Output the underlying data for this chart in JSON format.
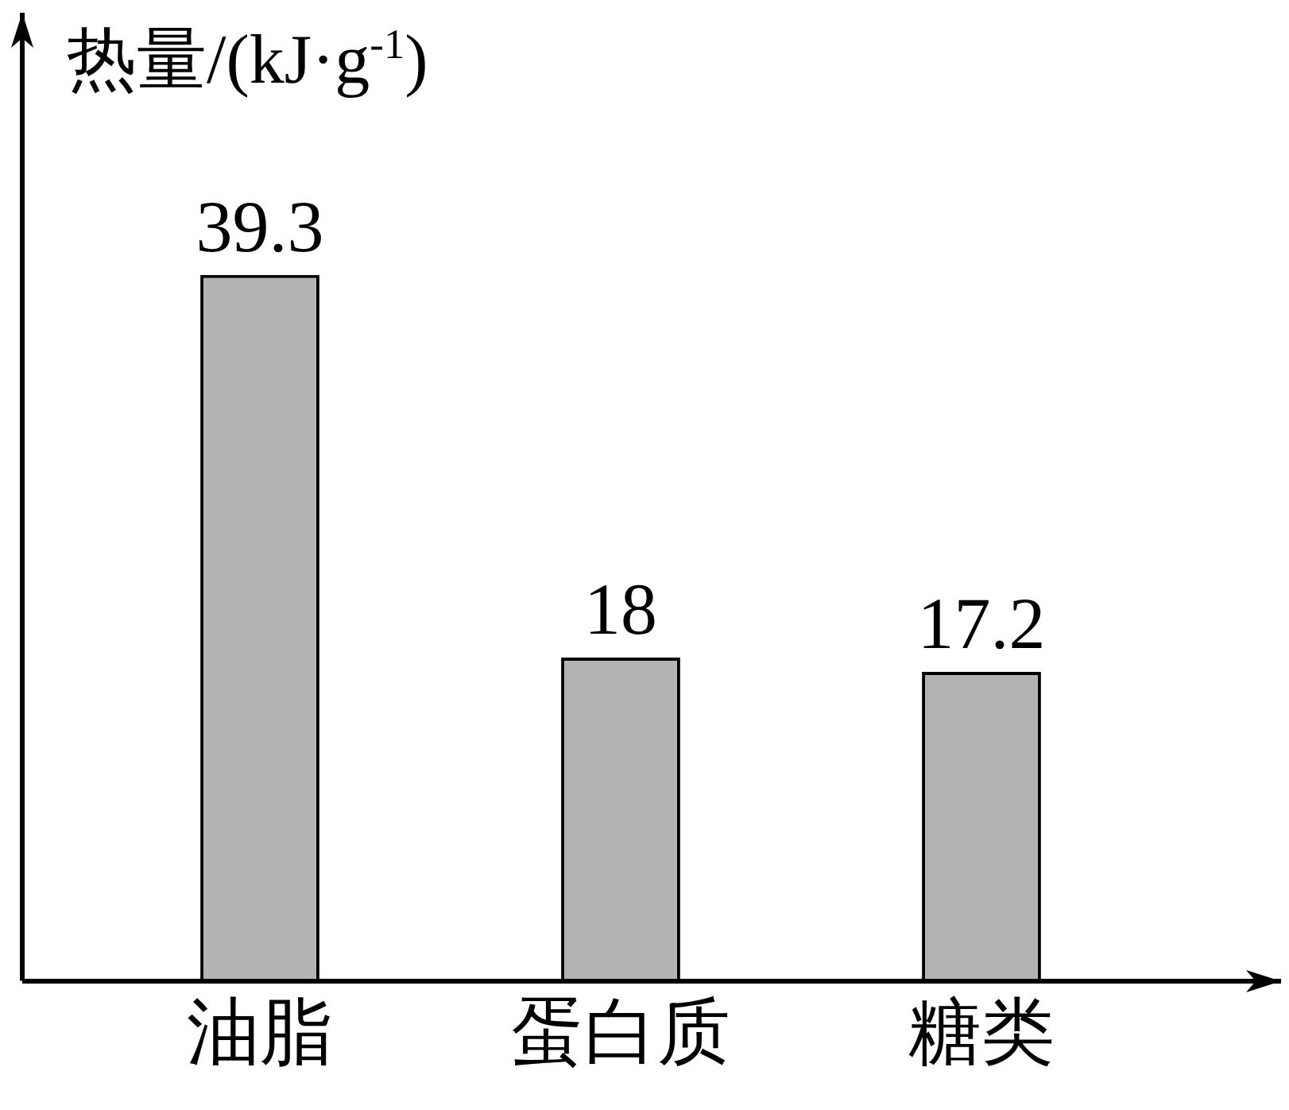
{
  "chart_data": {
    "type": "bar",
    "ylabel": "热量/(kJ·g$^{-1}$)",
    "categories": [
      "油脂",
      "蛋白质",
      "糖类"
    ],
    "values": [
      39.3,
      18,
      17.2
    ],
    "color": "#b3b3b3",
    "data_labels": true,
    "grid": false,
    "legend": false
  }
}
